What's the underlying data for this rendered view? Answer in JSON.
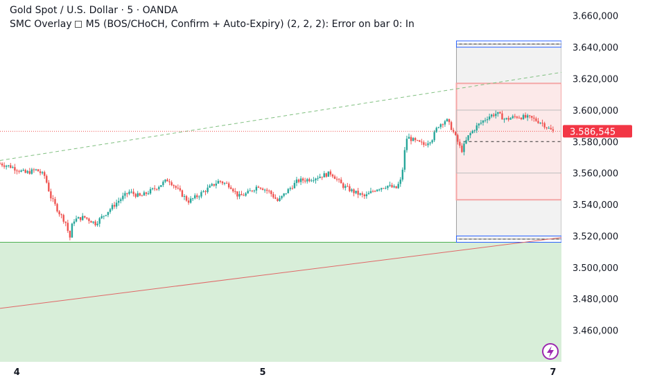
{
  "header": {
    "symbol_line": "Gold Spot / U.S. Dollar · 5 · OANDA",
    "indicator_name": "SMC Overlay",
    "indicator_args": "M5 (BOS/CHoCH, Confirm + Auto-Expiry) (2, 2, 2): Error on bar 0: In"
  },
  "colors": {
    "up": "#26a69a",
    "down": "#ef5350",
    "demand_zone": "#d8eed9",
    "supply_zone": "#f4a6a6",
    "trend_red": "#e06666",
    "trend_green": "#7fbf7f",
    "price_badge": "#f23645",
    "range_box": "#9e9e9e",
    "blue_line": "#2962ff"
  },
  "chart_data": {
    "type": "candlestick",
    "symbol": "Gold Spot / U.S. Dollar",
    "timeframe": "5",
    "source": "OANDA",
    "ylim": [
      3440000,
      3670000
    ],
    "y_ticks": [
      3660000,
      3640000,
      3620000,
      3600000,
      3580000,
      3560000,
      3540000,
      3520000,
      3500000,
      3480000,
      3460000
    ],
    "y_tick_labels": [
      "3.660,000",
      "3.640,000",
      "3.620,000",
      "3.600,000",
      "3.580,000",
      "3.560,000",
      "3.540,000",
      "3.520,000",
      "3.500,000",
      "3.480,000",
      "3.460,000"
    ],
    "x_labels": [
      {
        "label": "4",
        "frac": 0.03
      },
      {
        "label": "5",
        "frac": 0.468
      },
      {
        "label": "7",
        "frac": 0.985
      }
    ],
    "last_price": 3586545,
    "last_price_label": "3.586,545",
    "price_path": [
      [
        0.0,
        3566000
      ],
      [
        0.02,
        3564000
      ],
      [
        0.045,
        3560000
      ],
      [
        0.065,
        3562000
      ],
      [
        0.08,
        3558000
      ],
      [
        0.09,
        3545000
      ],
      [
        0.105,
        3535000
      ],
      [
        0.118,
        3528000
      ],
      [
        0.124,
        3518000
      ],
      [
        0.13,
        3530000
      ],
      [
        0.15,
        3532000
      ],
      [
        0.17,
        3528000
      ],
      [
        0.19,
        3535000
      ],
      [
        0.21,
        3542000
      ],
      [
        0.23,
        3548000
      ],
      [
        0.25,
        3545000
      ],
      [
        0.275,
        3550000
      ],
      [
        0.3,
        3556000
      ],
      [
        0.32,
        3548000
      ],
      [
        0.335,
        3542000
      ],
      [
        0.35,
        3545000
      ],
      [
        0.37,
        3550000
      ],
      [
        0.39,
        3555000
      ],
      [
        0.41,
        3552000
      ],
      [
        0.425,
        3545000
      ],
      [
        0.44,
        3547000
      ],
      [
        0.46,
        3552000
      ],
      [
        0.48,
        3548000
      ],
      [
        0.495,
        3542000
      ],
      [
        0.51,
        3548000
      ],
      [
        0.53,
        3555000
      ],
      [
        0.55,
        3556000
      ],
      [
        0.57,
        3558000
      ],
      [
        0.59,
        3560000
      ],
      [
        0.61,
        3552000
      ],
      [
        0.63,
        3548000
      ],
      [
        0.65,
        3545000
      ],
      [
        0.67,
        3550000
      ],
      [
        0.69,
        3552000
      ],
      [
        0.705,
        3550000
      ],
      [
        0.715,
        3556000
      ],
      [
        0.72,
        3572000
      ],
      [
        0.725,
        3583000
      ],
      [
        0.74,
        3580000
      ],
      [
        0.755,
        3578000
      ],
      [
        0.77,
        3582000
      ],
      [
        0.78,
        3590000
      ],
      [
        0.795,
        3594000
      ],
      [
        0.805,
        3588000
      ],
      [
        0.815,
        3580000
      ],
      [
        0.822,
        3574000
      ],
      [
        0.835,
        3584000
      ],
      [
        0.85,
        3590000
      ],
      [
        0.87,
        3596000
      ],
      [
        0.885,
        3598000
      ],
      [
        0.9,
        3594000
      ],
      [
        0.92,
        3596000
      ],
      [
        0.945,
        3595000
      ],
      [
        0.965,
        3592000
      ],
      [
        0.978,
        3588000
      ],
      [
        0.985,
        3586545
      ]
    ],
    "annotations": {
      "support_line_price": 3516000,
      "price_line": 3586545,
      "trend_red": {
        "from": [
          0.0,
          3474000
        ],
        "to": [
          1.0,
          3519000
        ]
      },
      "trend_green": {
        "from": [
          0.0,
          3568000
        ],
        "to": [
          1.0,
          3624000
        ]
      },
      "range_box": {
        "x_from": 0.813,
        "x_to": 1.0,
        "top": 3642000,
        "bottom": 3518000
      },
      "supply_zone": {
        "x_from": 0.813,
        "x_to": 1.0,
        "top": 3617000,
        "bottom": 3543000
      },
      "inner_box": {
        "x_from": 0.813,
        "x_to": 1.0,
        "levels": [
          3600000,
          3560000
        ]
      },
      "dashed_mid": 3580000,
      "blue_top": {
        "top": 3644000,
        "bottom": 3640000
      },
      "blue_bottom": {
        "top": 3520000,
        "bottom": 3516000
      }
    }
  }
}
